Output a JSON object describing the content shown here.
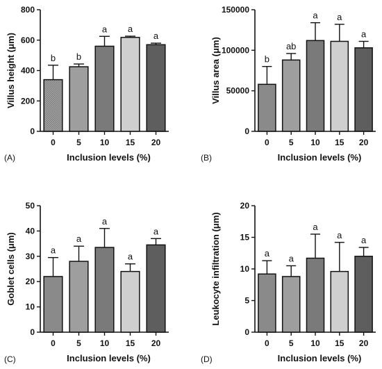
{
  "chart_data": [
    {
      "panel": "(A)",
      "type": "bar",
      "categories": [
        "0",
        "5",
        "10",
        "15",
        "20"
      ],
      "values": [
        340,
        425,
        560,
        618,
        570
      ],
      "errors": [
        95,
        18,
        65,
        8,
        10
      ],
      "letters": [
        "b",
        "b",
        "a",
        "a",
        "a"
      ],
      "colors": [
        "#8a8a8a",
        "#9e9e9e",
        "#7a7a7a",
        "#cfcfcf",
        "#5e5e5e"
      ],
      "hatched": [
        true,
        false,
        false,
        false,
        false
      ],
      "xlabel": "Inclusion levels (%)",
      "ylabel": "Villus height (μm)",
      "ylim": [
        0,
        800
      ],
      "yticks": [
        0,
        200,
        400,
        600,
        800
      ],
      "ytick_labels": [
        "0",
        "200",
        "400",
        "600",
        "800"
      ]
    },
    {
      "panel": "(B)",
      "type": "bar",
      "categories": [
        "0",
        "5",
        "10",
        "15",
        "20"
      ],
      "values": [
        58000,
        88000,
        112000,
        111000,
        103000
      ],
      "errors": [
        22000,
        8000,
        22000,
        21000,
        8000
      ],
      "letters": [
        "b",
        "ab",
        "a",
        "a",
        "a"
      ],
      "colors": [
        "#8a8a8a",
        "#9e9e9e",
        "#7a7a7a",
        "#cfcfcf",
        "#5e5e5e"
      ],
      "hatched": [
        false,
        false,
        false,
        false,
        false
      ],
      "xlabel": "Inclusion levels (%)",
      "ylabel": "Villus area (μm)",
      "ylim": [
        0,
        150000
      ],
      "yticks": [
        0,
        50000,
        100000,
        150000
      ],
      "ytick_labels": [
        "0",
        "50000",
        "100000",
        "150000"
      ]
    },
    {
      "panel": "(C)",
      "type": "bar",
      "categories": [
        "0",
        "5",
        "10",
        "15",
        "20"
      ],
      "values": [
        22,
        28,
        33.5,
        24,
        34.5
      ],
      "errors": [
        7.5,
        6,
        7.5,
        3,
        2.5
      ],
      "letters": [
        "a",
        "a",
        "a",
        "a",
        "a"
      ],
      "colors": [
        "#8a8a8a",
        "#9e9e9e",
        "#7a7a7a",
        "#cfcfcf",
        "#5e5e5e"
      ],
      "hatched": [
        false,
        false,
        false,
        false,
        false
      ],
      "xlabel": "Inclusion levels (%)",
      "ylabel": "Goblet cells (μm)",
      "ylim": [
        0,
        50
      ],
      "yticks": [
        0,
        10,
        20,
        30,
        40,
        50
      ],
      "ytick_labels": [
        "0",
        "10",
        "20",
        "30",
        "40",
        "50"
      ]
    },
    {
      "panel": "(D)",
      "type": "bar",
      "categories": [
        "0",
        "5",
        "10",
        "15",
        "20"
      ],
      "values": [
        9.2,
        8.8,
        11.7,
        9.6,
        12
      ],
      "errors": [
        2.1,
        1.7,
        3.8,
        4.6,
        1.4
      ],
      "letters": [
        "a",
        "a",
        "a",
        "a",
        "a"
      ],
      "colors": [
        "#8a8a8a",
        "#9e9e9e",
        "#7a7a7a",
        "#cfcfcf",
        "#5e5e5e"
      ],
      "hatched": [
        false,
        false,
        false,
        false,
        false
      ],
      "xlabel": "Inclusion levels (%)",
      "ylabel": "Leukocyte infiltration (μm)",
      "ylim": [
        0,
        20
      ],
      "yticks": [
        0,
        5,
        10,
        15,
        20
      ],
      "ytick_labels": [
        "0",
        "5",
        "10",
        "15",
        "20"
      ]
    }
  ]
}
